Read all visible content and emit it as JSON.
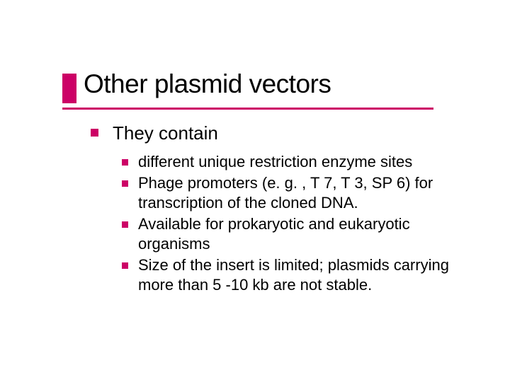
{
  "colors": {
    "accent": "#cc0066",
    "text": "#000000",
    "background": "#ffffff"
  },
  "title": "Other plasmid vectors",
  "body": {
    "level1_text": "They contain",
    "bullet_color_l1": "#cc0066",
    "bullet_color_l2": "#cc0066",
    "level2_items": [
      "different unique restriction enzyme sites",
      "Phage promoters (e. g. , T 7, T 3, SP 6) for transcription of the cloned DNA.",
      "Available for prokaryotic and eukaryotic organisms",
      "Size of the insert is limited; plasmids carrying more than 5 -10 kb are not stable."
    ]
  }
}
